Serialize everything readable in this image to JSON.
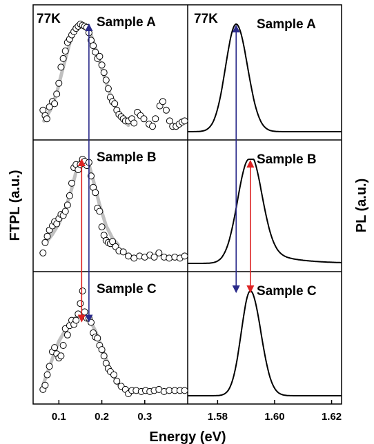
{
  "figure": {
    "xlabel": "Energy (eV)",
    "ylabel_left": "FTPL (a.u.)",
    "ylabel_right": "PL (a.u.)"
  },
  "chart_data": [
    {
      "type": "scatter",
      "panel": "left",
      "xticks": [
        "0.1",
        "0.2",
        "0.3"
      ],
      "xlim": [
        0.04,
        0.4
      ],
      "ylabel": "FTPL (a.u.)",
      "xlabel": "Energy (eV)",
      "arrows": [
        {
          "color": "#2a2a8a",
          "x": 0.17,
          "from": "Sample A",
          "to": "Sample C"
        },
        {
          "color": "#dd2222",
          "x": 0.153,
          "from": "Sample B",
          "to": "Sample C"
        }
      ],
      "series": [
        {
          "label": "Sample A",
          "temp_label": "77K",
          "points": [
            [
              0.063,
              0.2
            ],
            [
              0.068,
              0.15
            ],
            [
              0.072,
              0.12
            ],
            [
              0.078,
              0.23
            ],
            [
              0.085,
              0.28
            ],
            [
              0.09,
              0.26
            ],
            [
              0.095,
              0.35
            ],
            [
              0.1,
              0.45
            ],
            [
              0.105,
              0.6
            ],
            [
              0.11,
              0.68
            ],
            [
              0.115,
              0.75
            ],
            [
              0.12,
              0.83
            ],
            [
              0.125,
              0.86
            ],
            [
              0.13,
              0.9
            ],
            [
              0.135,
              0.93
            ],
            [
              0.14,
              0.96
            ],
            [
              0.145,
              0.98
            ],
            [
              0.15,
              1.0
            ],
            [
              0.155,
              0.99
            ],
            [
              0.16,
              0.98
            ],
            [
              0.165,
              0.97
            ],
            [
              0.17,
              0.92
            ],
            [
              0.175,
              0.85
            ],
            [
              0.18,
              0.8
            ],
            [
              0.185,
              0.74
            ],
            [
              0.19,
              0.68
            ],
            [
              0.195,
              0.7
            ],
            [
              0.2,
              0.62
            ],
            [
              0.205,
              0.55
            ],
            [
              0.21,
              0.48
            ],
            [
              0.215,
              0.4
            ],
            [
              0.22,
              0.32
            ],
            [
              0.225,
              0.28
            ],
            [
              0.23,
              0.26
            ],
            [
              0.235,
              0.2
            ],
            [
              0.24,
              0.16
            ],
            [
              0.245,
              0.14
            ],
            [
              0.25,
              0.12
            ],
            [
              0.255,
              0.1
            ],
            [
              0.262,
              0.1
            ],
            [
              0.27,
              0.12
            ],
            [
              0.275,
              0.08
            ],
            [
              0.283,
              0.18
            ],
            [
              0.29,
              0.15
            ],
            [
              0.298,
              0.12
            ],
            [
              0.31,
              0.07
            ],
            [
              0.318,
              0.05
            ],
            [
              0.325,
              0.12
            ],
            [
              0.335,
              0.24
            ],
            [
              0.342,
              0.28
            ],
            [
              0.35,
              0.2
            ],
            [
              0.358,
              0.1
            ],
            [
              0.365,
              0.05
            ],
            [
              0.373,
              0.05
            ],
            [
              0.38,
              0.07
            ],
            [
              0.387,
              0.09
            ],
            [
              0.393,
              0.1
            ]
          ],
          "fit_x": [
            0.065,
            0.08,
            0.095,
            0.11,
            0.125,
            0.14,
            0.155,
            0.165,
            0.175,
            0.19,
            0.205,
            0.22,
            0.235,
            0.25,
            0.262
          ],
          "fit_y": [
            0.1,
            0.2,
            0.36,
            0.6,
            0.82,
            0.96,
            1.0,
            0.97,
            0.9,
            0.72,
            0.52,
            0.34,
            0.2,
            0.11,
            0.06
          ]
        },
        {
          "label": "Sample B",
          "points": [
            [
              0.063,
              0.1
            ],
            [
              0.068,
              0.2
            ],
            [
              0.073,
              0.26
            ],
            [
              0.078,
              0.32
            ],
            [
              0.085,
              0.36
            ],
            [
              0.09,
              0.4
            ],
            [
              0.095,
              0.38
            ],
            [
              0.1,
              0.43
            ],
            [
              0.105,
              0.47
            ],
            [
              0.11,
              0.46
            ],
            [
              0.115,
              0.5
            ],
            [
              0.12,
              0.56
            ],
            [
              0.125,
              0.65
            ],
            [
              0.13,
              0.77
            ],
            [
              0.135,
              0.92
            ],
            [
              0.14,
              0.95
            ],
            [
              0.145,
              0.9
            ],
            [
              0.15,
              0.95
            ],
            [
              0.155,
              1.0
            ],
            [
              0.16,
              0.98
            ],
            [
              0.165,
              0.94
            ],
            [
              0.17,
              0.97
            ],
            [
              0.175,
              0.84
            ],
            [
              0.18,
              0.73
            ],
            [
              0.185,
              0.68
            ],
            [
              0.19,
              0.53
            ],
            [
              0.195,
              0.5
            ],
            [
              0.2,
              0.35
            ],
            [
              0.205,
              0.27
            ],
            [
              0.21,
              0.22
            ],
            [
              0.215,
              0.2
            ],
            [
              0.22,
              0.19
            ],
            [
              0.225,
              0.21
            ],
            [
              0.232,
              0.16
            ],
            [
              0.24,
              0.12
            ],
            [
              0.25,
              0.11
            ],
            [
              0.262,
              0.07
            ],
            [
              0.275,
              0.05
            ],
            [
              0.288,
              0.07
            ],
            [
              0.3,
              0.06
            ],
            [
              0.312,
              0.08
            ],
            [
              0.322,
              0.06
            ],
            [
              0.333,
              0.1
            ],
            [
              0.345,
              0.06
            ],
            [
              0.357,
              0.05
            ],
            [
              0.37,
              0.06
            ],
            [
              0.382,
              0.05
            ],
            [
              0.393,
              0.07
            ]
          ],
          "fit_x": [
            0.07,
            0.085,
            0.1,
            0.115,
            0.13,
            0.14,
            0.15,
            0.16,
            0.17,
            0.18,
            0.195,
            0.21,
            0.225,
            0.238
          ],
          "fit_y": [
            0.2,
            0.28,
            0.38,
            0.52,
            0.72,
            0.88,
            0.98,
            1.0,
            0.95,
            0.8,
            0.56,
            0.36,
            0.24,
            0.18
          ]
        },
        {
          "label": "Sample C",
          "points": [
            [
              0.063,
              0.06
            ],
            [
              0.068,
              0.1
            ],
            [
              0.073,
              0.2
            ],
            [
              0.078,
              0.28
            ],
            [
              0.085,
              0.42
            ],
            [
              0.09,
              0.46
            ],
            [
              0.095,
              0.4
            ],
            [
              0.1,
              0.36
            ],
            [
              0.105,
              0.38
            ],
            [
              0.11,
              0.48
            ],
            [
              0.115,
              0.64
            ],
            [
              0.12,
              0.58
            ],
            [
              0.125,
              0.67
            ],
            [
              0.13,
              0.72
            ],
            [
              0.135,
              0.68
            ],
            [
              0.14,
              0.72
            ],
            [
              0.145,
              0.78
            ],
            [
              0.15,
              0.88
            ],
            [
              0.155,
              1.0
            ],
            [
              0.16,
              0.8
            ],
            [
              0.165,
              0.74
            ],
            [
              0.17,
              0.74
            ],
            [
              0.175,
              0.7
            ],
            [
              0.18,
              0.6
            ],
            [
              0.185,
              0.56
            ],
            [
              0.19,
              0.55
            ],
            [
              0.195,
              0.48
            ],
            [
              0.2,
              0.44
            ],
            [
              0.205,
              0.38
            ],
            [
              0.21,
              0.31
            ],
            [
              0.215,
              0.26
            ],
            [
              0.22,
              0.23
            ],
            [
              0.228,
              0.2
            ],
            [
              0.235,
              0.14
            ],
            [
              0.245,
              0.09
            ],
            [
              0.255,
              0.06
            ],
            [
              0.262,
              0.02
            ],
            [
              0.27,
              0.05
            ],
            [
              0.28,
              0.05
            ],
            [
              0.292,
              0.04
            ],
            [
              0.302,
              0.05
            ],
            [
              0.312,
              0.04
            ],
            [
              0.322,
              0.05
            ],
            [
              0.333,
              0.06
            ],
            [
              0.345,
              0.04
            ],
            [
              0.357,
              0.05
            ],
            [
              0.37,
              0.05
            ],
            [
              0.382,
              0.05
            ],
            [
              0.393,
              0.05
            ]
          ],
          "fit_x": [
            0.063,
            0.08,
            0.1,
            0.12,
            0.14,
            0.155,
            0.17,
            0.185,
            0.2,
            0.22,
            0.24,
            0.26
          ],
          "fit_y": [
            0.1,
            0.3,
            0.52,
            0.66,
            0.75,
            0.78,
            0.74,
            0.62,
            0.46,
            0.24,
            0.1,
            0.04
          ]
        }
      ]
    },
    {
      "type": "line",
      "panel": "right",
      "xticks": [
        "1.58",
        "1.60",
        "1.62"
      ],
      "xlim": [
        1.5695,
        1.6235
      ],
      "ylabel": "PL (a.u.)",
      "xlabel": "Energy (eV)",
      "arrows": [
        {
          "color": "#2a2a8a",
          "x": 1.5865,
          "from": "Sample A",
          "to": "Sample C"
        },
        {
          "color": "#dd2222",
          "x": 1.5915,
          "from": "Sample B",
          "to": "Sample C"
        }
      ],
      "series": [
        {
          "label": "Sample A",
          "temp_label": "77K",
          "peak": 1.5865,
          "sigma_left": 0.0037,
          "sigma_right": 0.004,
          "tail": 0.0
        },
        {
          "label": "Sample B",
          "peak": 1.591,
          "sigma_left": 0.004,
          "sigma_right": 0.0042,
          "tail": 0.22
        },
        {
          "label": "Sample C",
          "peak": 1.5915,
          "sigma_left": 0.0032,
          "sigma_right": 0.0037,
          "tail": 0.0
        }
      ]
    }
  ]
}
